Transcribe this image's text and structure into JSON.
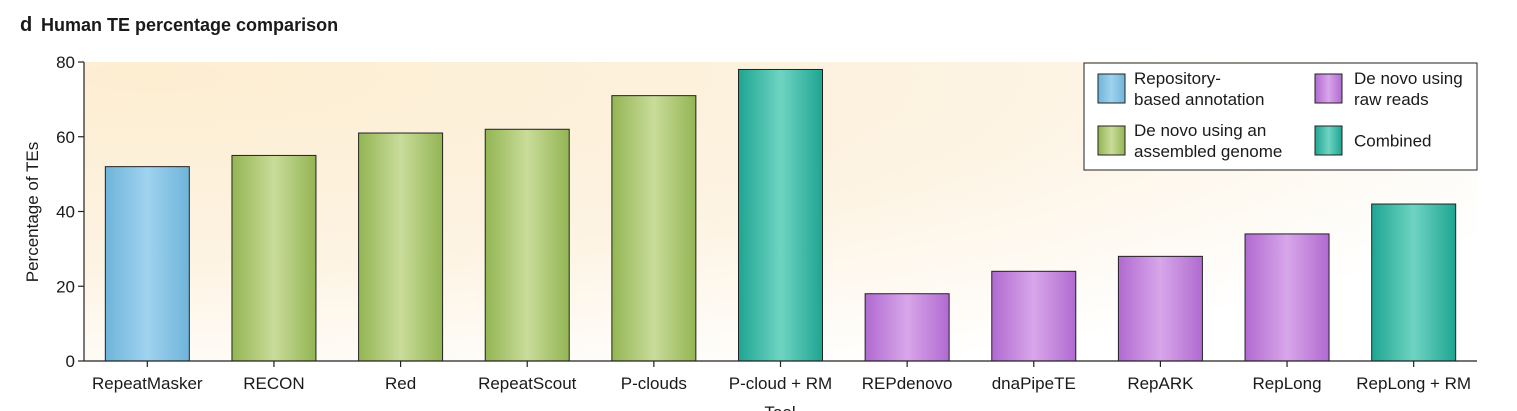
{
  "panel_label": "d",
  "chart_data": {
    "type": "bar",
    "title": "Human TE percentage comparison",
    "ylabel": "Percentage of TEs",
    "xlabel": "Tool",
    "ylim": [
      0,
      80
    ],
    "yticks": [
      0,
      20,
      40,
      60,
      80
    ],
    "grid": false,
    "legend_position": "top-right",
    "categories": [
      "RepeatMasker",
      "RECON",
      "Red",
      "RepeatScout",
      "P-clouds",
      "P-cloud + RM",
      "REPdenovo",
      "dnaPipeTE",
      "RepARK",
      "RepLong",
      "RepLong + RM"
    ],
    "values": [
      52,
      55,
      61,
      62,
      71,
      78,
      18,
      24,
      28,
      34,
      42
    ],
    "groups": [
      "repository",
      "assembled",
      "assembled",
      "assembled",
      "assembled",
      "combined",
      "raw",
      "raw",
      "raw",
      "raw",
      "combined"
    ],
    "legend": [
      {
        "key": "repository",
        "lines": [
          "Repository-",
          "based annotation"
        ],
        "color": "#7cc3e6"
      },
      {
        "key": "raw",
        "lines": [
          "De novo using",
          "raw reads"
        ],
        "color": "#c07fd8"
      },
      {
        "key": "assembled",
        "lines": [
          "De novo using an",
          "assembled genome"
        ],
        "color": "#a8c46a"
      },
      {
        "key": "combined",
        "lines": [
          "Combined"
        ],
        "color": "#2fb5a2"
      }
    ]
  }
}
